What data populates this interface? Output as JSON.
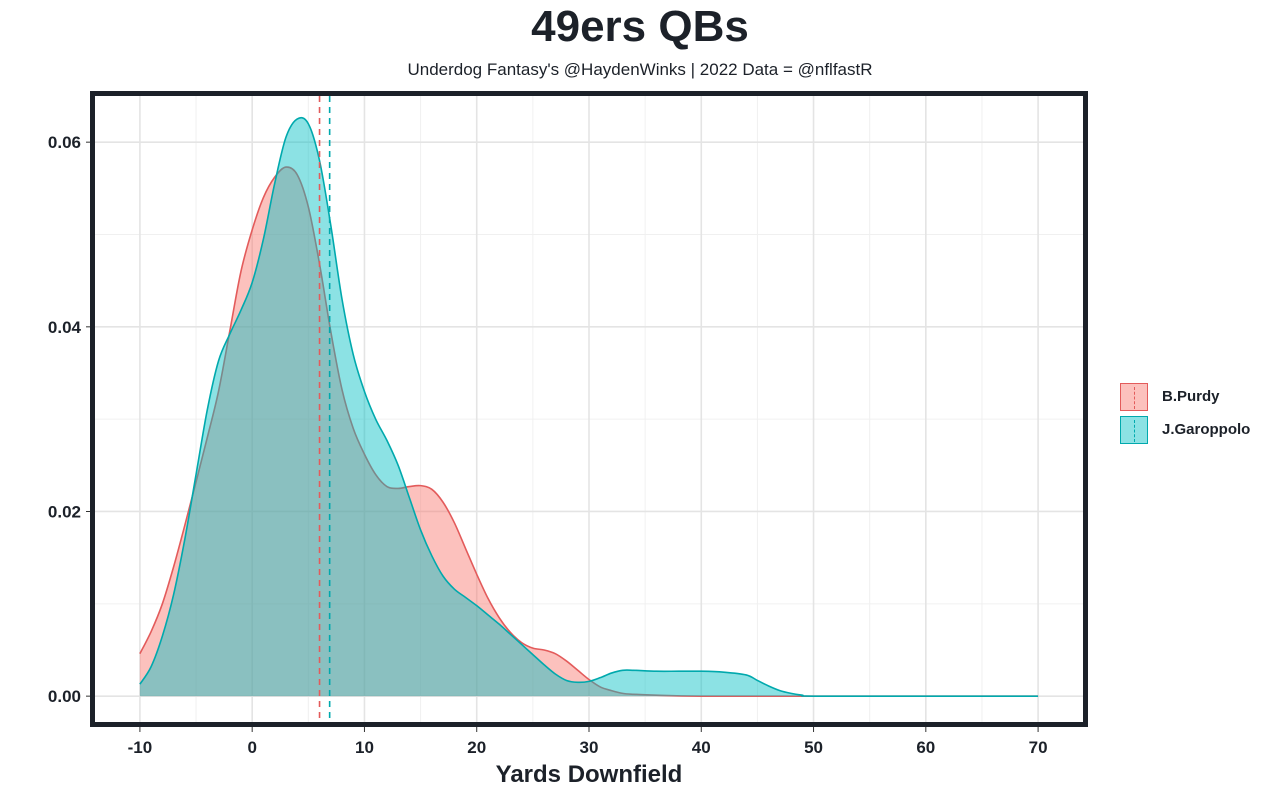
{
  "chart_data": {
    "type": "area",
    "title": "49ers QBs",
    "subtitle": "Underdog Fantasy's @HaydenWinks | 2022 Data = @nflfastR",
    "xlabel": "Yards Downfield",
    "ylabel": "",
    "xlim": [
      -14,
      74
    ],
    "ylim": [
      -0.0028,
      0.065
    ],
    "x_ticks": [
      -10,
      0,
      10,
      20,
      30,
      40,
      50,
      60,
      70
    ],
    "y_ticks": [
      0.0,
      0.02,
      0.04,
      0.06
    ],
    "y_tick_labels": [
      "0.00",
      "0.02",
      "0.04",
      "0.06"
    ],
    "series": [
      {
        "name": "B.Purdy",
        "color": "#e35b5b",
        "fill": "#f8766d",
        "mean_line": 6.0,
        "points": [
          [
            -10,
            0.0046
          ],
          [
            -9,
            0.007
          ],
          [
            -8,
            0.01
          ],
          [
            -7,
            0.014
          ],
          [
            -6,
            0.0185
          ],
          [
            -5,
            0.0232
          ],
          [
            -4,
            0.028
          ],
          [
            -3,
            0.033
          ],
          [
            -2,
            0.0395
          ],
          [
            -1,
            0.046
          ],
          [
            0,
            0.0505
          ],
          [
            1,
            0.054
          ],
          [
            2,
            0.0562
          ],
          [
            3,
            0.0573
          ],
          [
            4,
            0.0565
          ],
          [
            5,
            0.053
          ],
          [
            6,
            0.0468
          ],
          [
            7,
            0.0395
          ],
          [
            8,
            0.0332
          ],
          [
            9,
            0.029
          ],
          [
            10,
            0.0262
          ],
          [
            11,
            0.024
          ],
          [
            12,
            0.0227
          ],
          [
            13,
            0.0225
          ],
          [
            14,
            0.0227
          ],
          [
            15,
            0.0228
          ],
          [
            16,
            0.0224
          ],
          [
            17,
            0.021
          ],
          [
            18,
            0.0188
          ],
          [
            19,
            0.016
          ],
          [
            20,
            0.0132
          ],
          [
            21,
            0.0106
          ],
          [
            22,
            0.0085
          ],
          [
            23,
            0.0069
          ],
          [
            24,
            0.0058
          ],
          [
            25,
            0.0052
          ],
          [
            26,
            0.005
          ],
          [
            27,
            0.0046
          ],
          [
            28,
            0.0038
          ],
          [
            29,
            0.0028
          ],
          [
            30,
            0.0018
          ],
          [
            31,
            0.001
          ],
          [
            32,
            0.0006
          ],
          [
            33,
            0.0003
          ],
          [
            34,
            0.0002
          ],
          [
            36,
            0.0001
          ],
          [
            40,
            0.0
          ],
          [
            50,
            0.0
          ],
          [
            60,
            0.0
          ],
          [
            70,
            0.0
          ]
        ]
      },
      {
        "name": "J.Garoppolo",
        "color": "#00a9ad",
        "fill": "#00bfc4",
        "mean_line": 6.9,
        "points": [
          [
            -10,
            0.0013
          ],
          [
            -9,
            0.0032
          ],
          [
            -8,
            0.0065
          ],
          [
            -7,
            0.011
          ],
          [
            -6,
            0.017
          ],
          [
            -5,
            0.024
          ],
          [
            -4,
            0.031
          ],
          [
            -3,
            0.0363
          ],
          [
            -2,
            0.0392
          ],
          [
            -1,
            0.0418
          ],
          [
            0,
            0.0448
          ],
          [
            1,
            0.0495
          ],
          [
            2,
            0.0555
          ],
          [
            3,
            0.0605
          ],
          [
            4,
            0.0625
          ],
          [
            5,
            0.062
          ],
          [
            6,
            0.058
          ],
          [
            7,
            0.051
          ],
          [
            8,
            0.043
          ],
          [
            9,
            0.037
          ],
          [
            10,
            0.033
          ],
          [
            11,
            0.03
          ],
          [
            12,
            0.0277
          ],
          [
            13,
            0.025
          ],
          [
            14,
            0.0215
          ],
          [
            15,
            0.018
          ],
          [
            16,
            0.0152
          ],
          [
            17,
            0.013
          ],
          [
            18,
            0.0116
          ],
          [
            19,
            0.0107
          ],
          [
            20,
            0.0098
          ],
          [
            21,
            0.0088
          ],
          [
            22,
            0.0078
          ],
          [
            23,
            0.0067
          ],
          [
            24,
            0.0056
          ],
          [
            25,
            0.0045
          ],
          [
            26,
            0.0034
          ],
          [
            27,
            0.0024
          ],
          [
            28,
            0.0017
          ],
          [
            29,
            0.0015
          ],
          [
            30,
            0.0016
          ],
          [
            31,
            0.002
          ],
          [
            32,
            0.0025
          ],
          [
            33,
            0.0028
          ],
          [
            34,
            0.0028
          ],
          [
            36,
            0.0027
          ],
          [
            38,
            0.0027
          ],
          [
            40,
            0.0027
          ],
          [
            42,
            0.0026
          ],
          [
            44,
            0.0023
          ],
          [
            45,
            0.0017
          ],
          [
            46,
            0.0011
          ],
          [
            47,
            0.0006
          ],
          [
            48,
            0.0003
          ],
          [
            49,
            0.0001
          ],
          [
            50,
            0.0
          ],
          [
            60,
            0.0
          ],
          [
            70,
            0.0
          ]
        ]
      }
    ],
    "legend_position": "right"
  }
}
